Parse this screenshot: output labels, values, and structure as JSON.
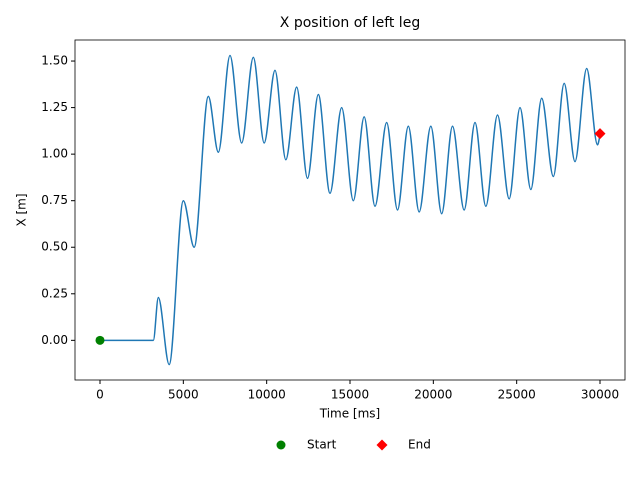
{
  "chart_data": {
    "type": "line",
    "title": "X position of left leg",
    "x_label": "Time [ms]",
    "y_label": "X [m]",
    "x": [
      0,
      3200,
      3500,
      4150,
      5000,
      5650,
      6500,
      7100,
      7800,
      8500,
      9200,
      9850,
      10500,
      11150,
      11800,
      12450,
      13100,
      13800,
      14500,
      15200,
      15850,
      16500,
      17200,
      17850,
      18500,
      19150,
      19850,
      20500,
      21150,
      21850,
      22500,
      23150,
      23850,
      24550,
      25200,
      25850,
      26500,
      27200,
      27850,
      28500,
      29200,
      29850,
      30000
    ],
    "values": [
      0,
      0,
      0.23,
      -0.13,
      0.75,
      0.5,
      1.31,
      1.01,
      1.53,
      1.06,
      1.52,
      1.06,
      1.45,
      0.97,
      1.36,
      0.87,
      1.32,
      0.79,
      1.25,
      0.75,
      1.2,
      0.72,
      1.17,
      0.7,
      1.15,
      0.69,
      1.15,
      0.68,
      1.15,
      0.7,
      1.17,
      0.72,
      1.21,
      0.76,
      1.25,
      0.81,
      1.3,
      0.88,
      1.38,
      0.96,
      1.46,
      1.05,
      1.1
    ],
    "color": "#1f77b4",
    "markers": [
      {
        "name": "Start",
        "x": 0,
        "y": 0,
        "color": "green",
        "shape": "circle"
      },
      {
        "name": "End",
        "x": 30000,
        "y": 1.11,
        "color": "red",
        "shape": "diamond"
      }
    ],
    "xlim": [
      -1500,
      31500
    ],
    "ylim": [
      -0.213,
      1.613
    ],
    "xticks": [
      0,
      5000,
      10000,
      15000,
      20000,
      25000,
      30000
    ],
    "yticks": [
      {
        "value": 0,
        "label": "0.00"
      },
      {
        "value": 0.25,
        "label": "0.25"
      },
      {
        "value": 0.5,
        "label": "0.50"
      },
      {
        "value": 0.75,
        "label": "0.75"
      },
      {
        "value": 1,
        "label": "1.00"
      },
      {
        "value": 1.25,
        "label": "1.25"
      },
      {
        "value": 1.5,
        "label": "1.50"
      }
    ],
    "legend": "below"
  }
}
